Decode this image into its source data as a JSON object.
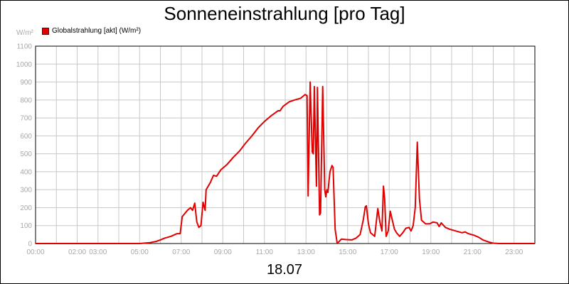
{
  "title": "Sonneneinstrahlung [pro Tag]",
  "date_label": "18.07",
  "chart_data": {
    "type": "line",
    "unit_label": "W/m²",
    "legend_position": "top-left",
    "grid": true,
    "xlim": [
      0,
      24
    ],
    "ylim": [
      0,
      1100
    ],
    "y_ticks": [
      0,
      100,
      200,
      300,
      400,
      500,
      600,
      700,
      800,
      900,
      1000,
      1100
    ],
    "x_tick_labels": [
      {
        "x": 0,
        "label": "00:00"
      },
      {
        "x": 2,
        "label": "02:00"
      },
      {
        "x": 3,
        "label": "03:00"
      },
      {
        "x": 5,
        "label": "05:00"
      },
      {
        "x": 7,
        "label": "07:00"
      },
      {
        "x": 9,
        "label": "09:00"
      },
      {
        "x": 11,
        "label": "11:00"
      },
      {
        "x": 13,
        "label": "13:00"
      },
      {
        "x": 15,
        "label": "15:00"
      },
      {
        "x": 17,
        "label": "17:00"
      },
      {
        "x": 19,
        "label": "19:00"
      },
      {
        "x": 21,
        "label": "21:00"
      },
      {
        "x": 23,
        "label": "23:00"
      }
    ],
    "series": [
      {
        "name": "Globalstrahlung [akt] (W/m²)",
        "color": "#e00000",
        "points": [
          [
            0,
            0
          ],
          [
            5.0,
            0
          ],
          [
            5.5,
            5
          ],
          [
            5.8,
            12
          ],
          [
            6.0,
            20
          ],
          [
            6.2,
            30
          ],
          [
            6.5,
            40
          ],
          [
            6.8,
            55
          ],
          [
            6.95,
            55
          ],
          [
            7.05,
            150
          ],
          [
            7.3,
            185
          ],
          [
            7.45,
            200
          ],
          [
            7.55,
            185
          ],
          [
            7.65,
            225
          ],
          [
            7.75,
            120
          ],
          [
            7.85,
            90
          ],
          [
            7.95,
            100
          ],
          [
            8.05,
            230
          ],
          [
            8.15,
            185
          ],
          [
            8.2,
            300
          ],
          [
            8.4,
            340
          ],
          [
            8.55,
            380
          ],
          [
            8.7,
            375
          ],
          [
            8.9,
            410
          ],
          [
            9.2,
            440
          ],
          [
            9.5,
            480
          ],
          [
            9.8,
            515
          ],
          [
            10.1,
            560
          ],
          [
            10.4,
            600
          ],
          [
            10.7,
            645
          ],
          [
            11.0,
            680
          ],
          [
            11.3,
            710
          ],
          [
            11.6,
            735
          ],
          [
            11.65,
            740
          ],
          [
            11.75,
            740
          ],
          [
            11.9,
            765
          ],
          [
            12.2,
            790
          ],
          [
            12.45,
            800
          ],
          [
            12.75,
            810
          ],
          [
            12.95,
            830
          ],
          [
            13.05,
            825
          ],
          [
            13.1,
            265
          ],
          [
            13.2,
            900
          ],
          [
            13.3,
            510
          ],
          [
            13.35,
            500
          ],
          [
            13.4,
            875
          ],
          [
            13.5,
            320
          ],
          [
            13.55,
            870
          ],
          [
            13.65,
            160
          ],
          [
            13.7,
            170
          ],
          [
            13.8,
            875
          ],
          [
            13.9,
            300
          ],
          [
            13.95,
            260
          ],
          [
            14.0,
            300
          ],
          [
            14.05,
            285
          ],
          [
            14.15,
            400
          ],
          [
            14.25,
            435
          ],
          [
            14.3,
            425
          ],
          [
            14.4,
            80
          ],
          [
            14.5,
            0
          ],
          [
            14.7,
            25
          ],
          [
            14.9,
            22
          ],
          [
            15.2,
            20
          ],
          [
            15.4,
            30
          ],
          [
            15.6,
            50
          ],
          [
            15.75,
            130
          ],
          [
            15.85,
            205
          ],
          [
            15.9,
            210
          ],
          [
            16.0,
            110
          ],
          [
            16.1,
            60
          ],
          [
            16.3,
            40
          ],
          [
            16.45,
            195
          ],
          [
            16.55,
            120
          ],
          [
            16.65,
            70
          ],
          [
            16.72,
            320
          ],
          [
            16.78,
            250
          ],
          [
            16.85,
            40
          ],
          [
            16.95,
            70
          ],
          [
            17.05,
            180
          ],
          [
            17.15,
            130
          ],
          [
            17.25,
            80
          ],
          [
            17.35,
            60
          ],
          [
            17.5,
            40
          ],
          [
            17.65,
            60
          ],
          [
            17.8,
            85
          ],
          [
            17.95,
            90
          ],
          [
            18.05,
            70
          ],
          [
            18.15,
            100
          ],
          [
            18.25,
            200
          ],
          [
            18.35,
            565
          ],
          [
            18.45,
            250
          ],
          [
            18.55,
            130
          ],
          [
            18.75,
            110
          ],
          [
            18.95,
            110
          ],
          [
            19.1,
            120
          ],
          [
            19.3,
            115
          ],
          [
            19.4,
            95
          ],
          [
            19.5,
            115
          ],
          [
            19.7,
            90
          ],
          [
            19.9,
            80
          ],
          [
            20.2,
            70
          ],
          [
            20.5,
            60
          ],
          [
            20.65,
            65
          ],
          [
            20.8,
            55
          ],
          [
            21.1,
            45
          ],
          [
            21.3,
            35
          ],
          [
            21.5,
            20
          ],
          [
            21.8,
            8
          ],
          [
            22.0,
            2
          ],
          [
            22.3,
            0
          ],
          [
            24.0,
            0
          ]
        ]
      }
    ]
  }
}
